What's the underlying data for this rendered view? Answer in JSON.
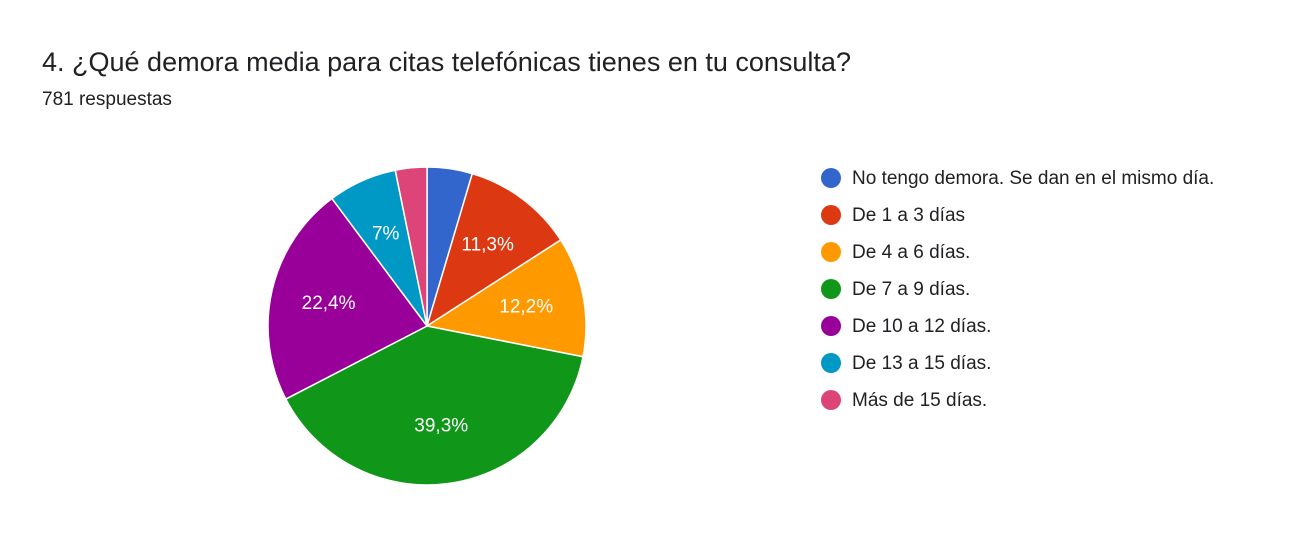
{
  "question": {
    "title": "4. ¿Qué demora media para citas telefónicas tienes en tu consulta?",
    "response_count": "781 respuestas"
  },
  "chart_data": {
    "type": "pie",
    "title": "4. ¿Qué demora media para citas telefónicas tienes en tu consulta?",
    "subtitle": "781 respuestas",
    "total_responses": 781,
    "start_angle_deg": 90,
    "direction": "clockwise",
    "legend_position": "right",
    "slices": [
      {
        "label": "No tengo demora. Se dan en el mismo día.",
        "value": 4.6,
        "color": "#3366cc",
        "data_label": ""
      },
      {
        "label": "De 1 a 3 días",
        "value": 11.3,
        "color": "#dc3912",
        "data_label": "11,3%"
      },
      {
        "label": "De 4 a 6 días.",
        "value": 12.2,
        "color": "#ff9900",
        "data_label": "12,2%"
      },
      {
        "label": "De 7 a 9 días.",
        "value": 39.3,
        "color": "#109618",
        "data_label": "39,3%"
      },
      {
        "label": "De 10 a 12 días.",
        "value": 22.4,
        "color": "#990099",
        "data_label": "22,4%"
      },
      {
        "label": "De 13 a 15 días.",
        "value": 7.0,
        "color": "#0099c6",
        "data_label": "7%"
      },
      {
        "label": "Más de 15 días.",
        "value": 3.2,
        "color": "#dd4477",
        "data_label": ""
      }
    ]
  }
}
